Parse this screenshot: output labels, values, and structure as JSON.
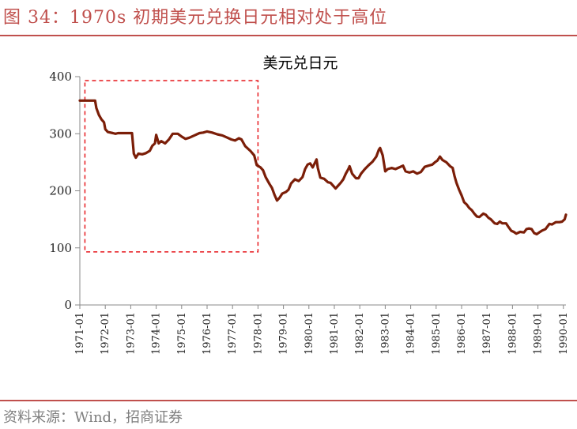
{
  "header": {
    "figure_title": "图 34：1970s 初期美元兑换日元相对处于高位"
  },
  "footer": {
    "source": "资料来源：Wind，招商证券"
  },
  "colors": {
    "accent": "#c0504d",
    "series": "#7b1e08",
    "highlight_box": "#e8262a"
  },
  "chart_data": {
    "type": "line",
    "title": "美元兑日元",
    "ylim": [
      0,
      400
    ],
    "yticks": [
      0,
      100,
      200,
      300,
      400
    ],
    "x_tick_labels": [
      "1971-01",
      "1972-01",
      "1973-01",
      "1974-01",
      "1975-01",
      "1976-01",
      "1977-01",
      "1978-01",
      "1979-01",
      "1980-01",
      "1981-01",
      "1982-01",
      "1983-01",
      "1984-01",
      "1985-01",
      "1986-01",
      "1987-01",
      "1988-01",
      "1989-01",
      "1990-01"
    ],
    "xlim": [
      1971.0,
      1990.1
    ],
    "grid": false,
    "annotation": {
      "type": "dashed-box",
      "x_range": [
        1971.2,
        1978.0
      ],
      "y_range": [
        93,
        393
      ]
    },
    "series": [
      {
        "points": [
          [
            1971.0,
            358
          ],
          [
            1971.6,
            358
          ],
          [
            1971.65,
            345
          ],
          [
            1971.75,
            333
          ],
          [
            1971.85,
            325
          ],
          [
            1971.95,
            320
          ],
          [
            1972.0,
            308
          ],
          [
            1972.1,
            303
          ],
          [
            1972.3,
            301
          ],
          [
            1972.4,
            300
          ],
          [
            1972.5,
            301
          ],
          [
            1972.7,
            301
          ],
          [
            1972.9,
            301
          ],
          [
            1973.05,
            301
          ],
          [
            1973.12,
            265
          ],
          [
            1973.2,
            258
          ],
          [
            1973.3,
            265
          ],
          [
            1973.45,
            264
          ],
          [
            1973.6,
            266
          ],
          [
            1973.75,
            270
          ],
          [
            1973.85,
            279
          ],
          [
            1973.95,
            283
          ],
          [
            1974.0,
            298
          ],
          [
            1974.1,
            283
          ],
          [
            1974.2,
            287
          ],
          [
            1974.35,
            283
          ],
          [
            1974.5,
            290
          ],
          [
            1974.65,
            300
          ],
          [
            1974.85,
            300
          ],
          [
            1975.0,
            295
          ],
          [
            1975.15,
            291
          ],
          [
            1975.3,
            293
          ],
          [
            1975.5,
            297
          ],
          [
            1975.7,
            301
          ],
          [
            1975.85,
            302
          ],
          [
            1976.0,
            304
          ],
          [
            1976.2,
            302
          ],
          [
            1976.4,
            299
          ],
          [
            1976.6,
            297
          ],
          [
            1976.8,
            293
          ],
          [
            1976.95,
            290
          ],
          [
            1977.1,
            288
          ],
          [
            1977.25,
            292
          ],
          [
            1977.35,
            290
          ],
          [
            1977.5,
            278
          ],
          [
            1977.7,
            270
          ],
          [
            1977.85,
            262
          ],
          [
            1977.95,
            245
          ],
          [
            1978.1,
            241
          ],
          [
            1978.2,
            236
          ],
          [
            1978.3,
            224
          ],
          [
            1978.45,
            212
          ],
          [
            1978.55,
            205
          ],
          [
            1978.65,
            193
          ],
          [
            1978.75,
            183
          ],
          [
            1978.85,
            188
          ],
          [
            1978.95,
            195
          ],
          [
            1979.1,
            198
          ],
          [
            1979.2,
            202
          ],
          [
            1979.3,
            213
          ],
          [
            1979.45,
            220
          ],
          [
            1979.6,
            217
          ],
          [
            1979.75,
            224
          ],
          [
            1979.85,
            238
          ],
          [
            1979.95,
            246
          ],
          [
            1980.05,
            248
          ],
          [
            1980.15,
            241
          ],
          [
            1980.3,
            255
          ],
          [
            1980.35,
            240
          ],
          [
            1980.45,
            223
          ],
          [
            1980.6,
            221
          ],
          [
            1980.75,
            215
          ],
          [
            1980.85,
            214
          ],
          [
            1980.95,
            209
          ],
          [
            1981.05,
            204
          ],
          [
            1981.15,
            209
          ],
          [
            1981.25,
            214
          ],
          [
            1981.35,
            220
          ],
          [
            1981.45,
            230
          ],
          [
            1981.55,
            238
          ],
          [
            1981.6,
            243
          ],
          [
            1981.7,
            230
          ],
          [
            1981.85,
            222
          ],
          [
            1981.95,
            222
          ],
          [
            1982.05,
            230
          ],
          [
            1982.2,
            238
          ],
          [
            1982.35,
            245
          ],
          [
            1982.5,
            251
          ],
          [
            1982.65,
            260
          ],
          [
            1982.75,
            272
          ],
          [
            1982.8,
            275
          ],
          [
            1982.9,
            262
          ],
          [
            1982.95,
            248
          ],
          [
            1983.0,
            234
          ],
          [
            1983.1,
            238
          ],
          [
            1983.25,
            240
          ],
          [
            1983.4,
            238
          ],
          [
            1983.55,
            241
          ],
          [
            1983.7,
            244
          ],
          [
            1983.8,
            234
          ],
          [
            1983.95,
            232
          ],
          [
            1984.1,
            234
          ],
          [
            1984.25,
            230
          ],
          [
            1984.4,
            233
          ],
          [
            1984.55,
            242
          ],
          [
            1984.7,
            244
          ],
          [
            1984.85,
            246
          ],
          [
            1984.95,
            250
          ],
          [
            1985.05,
            253
          ],
          [
            1985.15,
            260
          ],
          [
            1985.25,
            254
          ],
          [
            1985.4,
            250
          ],
          [
            1985.55,
            243
          ],
          [
            1985.65,
            240
          ],
          [
            1985.72,
            226
          ],
          [
            1985.8,
            214
          ],
          [
            1985.9,
            202
          ],
          [
            1986.0,
            192
          ],
          [
            1986.1,
            180
          ],
          [
            1986.2,
            176
          ],
          [
            1986.3,
            170
          ],
          [
            1986.4,
            166
          ],
          [
            1986.5,
            160
          ],
          [
            1986.6,
            155
          ],
          [
            1986.7,
            154
          ],
          [
            1986.85,
            160
          ],
          [
            1986.95,
            158
          ],
          [
            1987.05,
            153
          ],
          [
            1987.15,
            150
          ],
          [
            1987.3,
            143
          ],
          [
            1987.4,
            142
          ],
          [
            1987.5,
            146
          ],
          [
            1987.6,
            143
          ],
          [
            1987.75,
            143
          ],
          [
            1987.85,
            136
          ],
          [
            1987.95,
            130
          ],
          [
            1988.05,
            128
          ],
          [
            1988.15,
            125
          ],
          [
            1988.3,
            128
          ],
          [
            1988.45,
            127
          ],
          [
            1988.55,
            133
          ],
          [
            1988.65,
            134
          ],
          [
            1988.75,
            133
          ],
          [
            1988.85,
            126
          ],
          [
            1988.95,
            124
          ],
          [
            1989.05,
            127
          ],
          [
            1989.15,
            130
          ],
          [
            1989.3,
            133
          ],
          [
            1989.45,
            142
          ],
          [
            1989.55,
            141
          ],
          [
            1989.7,
            145
          ],
          [
            1989.85,
            145
          ],
          [
            1989.95,
            146
          ],
          [
            1990.05,
            150
          ],
          [
            1990.1,
            158
          ]
        ]
      }
    ]
  }
}
